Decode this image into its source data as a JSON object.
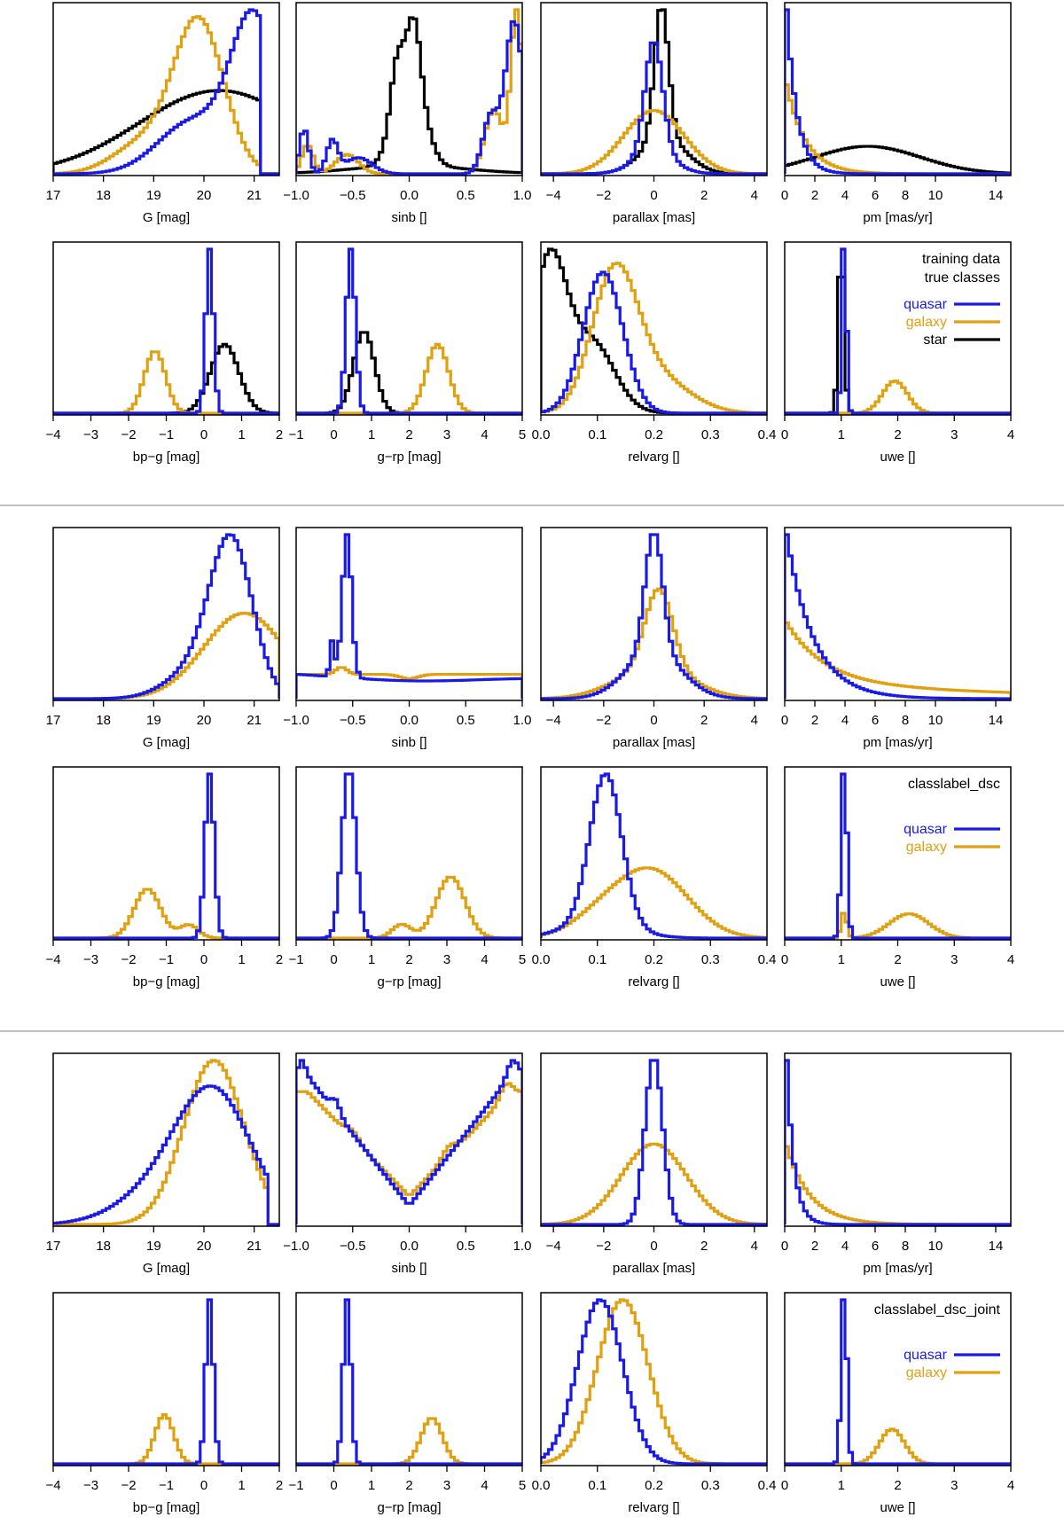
{
  "colors": {
    "quasar": "#1a1ae6",
    "galaxy": "#e0a010",
    "star": "#000000",
    "frame": "#000000",
    "separator": "#999999"
  },
  "chart_data": {
    "type": "histogram-grid",
    "bins": 60,
    "panels": [
      {
        "name": "G",
        "xlabel": "G [mag]",
        "xlim": [
          17,
          21.5
        ],
        "ticks": [
          17,
          18,
          19,
          20,
          21
        ],
        "ticklabels": [
          "17",
          "18",
          "19",
          "20",
          "21"
        ]
      },
      {
        "name": "sinb",
        "xlabel": "sinb []",
        "xlim": [
          -1,
          1
        ],
        "ticks": [
          -1,
          -0.5,
          0,
          0.5,
          1
        ],
        "ticklabels": [
          "−1.0",
          "−0.5",
          "0.0",
          "0.5",
          "1.0"
        ]
      },
      {
        "name": "parallax",
        "xlabel": "parallax [mas]",
        "xlim": [
          -4.5,
          4.5
        ],
        "ticks": [
          -4,
          -2,
          0,
          2,
          4
        ],
        "ticklabels": [
          "−4",
          "−2",
          "0",
          "2",
          "4"
        ]
      },
      {
        "name": "pm",
        "xlabel": "pm [mas/yr]",
        "xlim": [
          0,
          15
        ],
        "ticks": [
          0,
          2,
          4,
          6,
          8,
          10,
          14
        ],
        "ticklabels": [
          "0",
          "2",
          "4",
          "6",
          "8",
          "10",
          "14"
        ]
      },
      {
        "name": "bpg",
        "xlabel": "bp−g [mag]",
        "xlim": [
          -4,
          2
        ],
        "ticks": [
          -4,
          -3,
          -2,
          -1,
          0,
          1,
          2
        ],
        "ticklabels": [
          "−4",
          "−3",
          "−2",
          "−1",
          "0",
          "1",
          "2"
        ]
      },
      {
        "name": "grp",
        "xlabel": "g−rp [mag]",
        "xlim": [
          -1,
          5
        ],
        "ticks": [
          -1,
          0,
          1,
          2,
          3,
          4,
          5
        ],
        "ticklabels": [
          "−1",
          "0",
          "1",
          "2",
          "3",
          "4",
          "5"
        ]
      },
      {
        "name": "relvarg",
        "xlabel": "relvarg []",
        "xlim": [
          0,
          0.4
        ],
        "ticks": [
          0,
          0.1,
          0.2,
          0.3,
          0.4
        ],
        "ticklabels": [
          "0.0",
          "0.1",
          "0.2",
          "0.3",
          "0.4"
        ]
      },
      {
        "name": "uwe",
        "xlabel": "uwe []",
        "xlim": [
          0,
          4
        ],
        "ticks": [
          0,
          1,
          2,
          3,
          4
        ],
        "ticklabels": [
          "0",
          "1",
          "2",
          "3",
          "4"
        ]
      }
    ],
    "groups": [
      {
        "legend": {
          "title_lines": [
            "training data",
            "true classes"
          ],
          "entries": [
            "quasar",
            "galaxy",
            "star"
          ]
        },
        "series": {
          "G": {
            "quasar": [
              [
                21.0,
                0.45,
                1
              ],
              [
                19.8,
                0.7,
                0.35
              ]
            ],
            "galaxy": [
              [
                19.9,
                0.5,
                1
              ],
              [
                18.8,
                0.6,
                0.2
              ]
            ],
            "star": [
              [
                20.3,
                1.6,
                0.55
              ]
            ],
            "cutoff": 21.1
          },
          "sinb": {
            "quasar": [
              [
                0.93,
                0.08,
                0.95
              ],
              [
                0.72,
                0.07,
                0.35
              ],
              [
                -0.93,
                0.04,
                0.28
              ],
              [
                -0.68,
                0.05,
                0.2
              ],
              [
                -0.45,
                0.12,
                0.1
              ]
            ],
            "galaxy": [
              [
                0.95,
                0.05,
                1
              ],
              [
                0.75,
                0.08,
                0.4
              ],
              [
                -0.9,
                0.05,
                0.18
              ],
              [
                -0.55,
                0.1,
                0.12
              ]
            ],
            "star": [
              [
                0.0,
                0.12,
                0.72
              ],
              [
                -0.12,
                0.05,
                0.22
              ],
              [
                0.05,
                0.05,
                0.25
              ],
              [
                0,
                0.5,
                0.05
              ]
            ]
          },
          "parallax": {
            "quasar": [
              [
                0,
                0.35,
                0.8
              ],
              [
                0,
                0.8,
                0.15
              ]
            ],
            "galaxy": [
              [
                0,
                1.2,
                0.45
              ]
            ],
            "star": [
              [
                0.3,
                0.28,
                0.95
              ],
              [
                0.4,
                0.9,
                0.25
              ]
            ]
          },
          "pm": {
            "quasar": [
              [
                "exp",
                0.7,
                1.0
              ]
            ],
            "galaxy": [
              [
                "exp",
                1.3,
                0.5
              ]
            ],
            "star": [
              [
                5.5,
                3.5,
                0.14
              ]
            ]
          },
          "bpg": {
            "quasar": [
              [
                0.15,
                0.1,
                1
              ]
            ],
            "galaxy": [
              [
                -1.3,
                0.28,
                0.38
              ]
            ],
            "star": [
              [
                0.55,
                0.38,
                0.42
              ]
            ]
          },
          "grp": {
            "quasar": [
              [
                0.45,
                0.12,
                1
              ]
            ],
            "galaxy": [
              [
                2.75,
                0.3,
                0.42
              ]
            ],
            "star": [
              [
                0.8,
                0.28,
                0.5
              ]
            ]
          },
          "relvarg": {
            "quasar": [
              [
                0.11,
                0.035,
                0.7
              ]
            ],
            "galaxy": [
              [
                0.13,
                0.04,
                0.65
              ],
              [
                0.2,
                0.06,
                0.18
              ]
            ],
            "star": [
              [
                0.015,
                0.03,
                0.75
              ],
              [
                0.09,
                0.04,
                0.35
              ]
            ]
          },
          "uwe": {
            "quasar": [
              [
                1.05,
                0.04,
                1
              ]
            ],
            "galaxy": [
              [
                1.95,
                0.22,
                0.18
              ]
            ],
            "star": [
              [
                1.0,
                0.05,
                0.95
              ]
            ]
          }
        }
      },
      {
        "legend": {
          "title_lines": [
            "classlabel_dsc"
          ],
          "entries": [
            "quasar",
            "galaxy"
          ]
        },
        "series": {
          "G": {
            "quasar": [
              [
                20.55,
                0.42,
                1
              ],
              [
                19.9,
                0.6,
                0.2
              ]
            ],
            "galaxy": [
              [
                20.8,
                0.8,
                0.58
              ]
            ],
            "cutoff": 21.5
          },
          "sinb": {
            "quasar": [
              [
                -0.55,
                0.04,
                1
              ],
              [
                -0.68,
                0.02,
                0.25
              ],
              [
                "lin",
                -1,
                0.18,
                1,
                0.15
              ],
              [
                0,
                0.6,
                -0.04
              ]
            ],
            "galaxy": [
              [
                "lin",
                -1,
                0.17,
                1,
                0.17
              ],
              [
                -0.6,
                0.05,
                0.05
              ],
              [
                0.0,
                0.08,
                -0.03
              ]
            ]
          },
          "parallax": {
            "quasar": [
              [
                0,
                0.35,
                0.72
              ],
              [
                0,
                1.1,
                0.28
              ]
            ],
            "galaxy": [
              [
                0.2,
                0.55,
                0.48
              ],
              [
                0,
                1.5,
                0.18
              ]
            ]
          },
          "pm": {
            "quasar": [
              [
                "exp",
                1.8,
                1.0
              ]
            ],
            "galaxy": [
              [
                "exp",
                2.5,
                0.35
              ],
              [
                "exp",
                14,
                0.1
              ]
            ]
          },
          "bpg": {
            "quasar": [
              [
                0.15,
                0.12,
                1
              ]
            ],
            "galaxy": [
              [
                -1.5,
                0.35,
                0.3
              ],
              [
                -0.4,
                0.25,
                0.08
              ]
            ]
          },
          "grp": {
            "quasar": [
              [
                0.4,
                0.18,
                1
              ]
            ],
            "galaxy": [
              [
                3.1,
                0.38,
                0.36
              ],
              [
                1.8,
                0.25,
                0.08
              ]
            ]
          },
          "relvarg": {
            "quasar": [
              [
                0.115,
                0.028,
                1
              ],
              [
                0.1,
                0.06,
                0.1
              ]
            ],
            "galaxy": [
              [
                0.195,
                0.065,
                0.45
              ],
              [
                0.1,
                0.05,
                0.1
              ]
            ]
          },
          "uwe": {
            "quasar": [
              [
                1.05,
                0.05,
                1
              ]
            ],
            "galaxy": [
              [
                2.2,
                0.35,
                0.14
              ],
              [
                1.05,
                0.05,
                0.15
              ]
            ]
          }
        }
      },
      {
        "legend": {
          "title_lines": [
            "classlabel_dsc_joint"
          ],
          "entries": [
            "quasar",
            "galaxy"
          ]
        },
        "series": {
          "G": {
            "quasar": [
              [
                20.2,
                0.75,
                0.75
              ],
              [
                19.0,
                0.8,
                0.15
              ]
            ],
            "galaxy": [
              [
                20.2,
                0.6,
                0.95
              ]
            ],
            "cutoff": 21.3
          },
          "sinb": {
            "quasar": [
              [
                "v",
                0,
                0.95,
                0.12
              ],
              [
                -0.95,
                0.03,
                0.1
              ],
              [
                -0.65,
                0.04,
                0.08
              ],
              [
                0.92,
                0.05,
                0.1
              ]
            ],
            "galaxy": [
              [
                "v",
                0,
                0.85,
                0.18
              ],
              [
                -0.5,
                0.06,
                0.05
              ],
              [
                0.35,
                0.06,
                0.06
              ],
              [
                0.85,
                0.05,
                0.08
              ]
            ]
          },
          "parallax": {
            "quasar": [
              [
                0,
                0.35,
                1
              ]
            ],
            "galaxy": [
              [
                0,
                1.3,
                0.48
              ]
            ]
          },
          "pm": {
            "quasar": [
              [
                "exp",
                0.5,
                1.0
              ]
            ],
            "galaxy": [
              [
                "exp",
                1.6,
                0.4
              ]
            ]
          },
          "bpg": {
            "quasar": [
              [
                0.15,
                0.1,
                1
              ]
            ],
            "galaxy": [
              [
                -1.05,
                0.25,
                0.3
              ]
            ]
          },
          "grp": {
            "quasar": [
              [
                0.35,
                0.1,
                1
              ]
            ],
            "galaxy": [
              [
                2.6,
                0.28,
                0.28
              ]
            ]
          },
          "relvarg": {
            "quasar": [
              [
                0.105,
                0.04,
                0.95
              ]
            ],
            "galaxy": [
              [
                0.145,
                0.045,
                0.95
              ]
            ]
          },
          "uwe": {
            "quasar": [
              [
                1.05,
                0.05,
                1
              ]
            ],
            "galaxy": [
              [
                1.9,
                0.22,
                0.2
              ]
            ]
          }
        }
      }
    ]
  }
}
